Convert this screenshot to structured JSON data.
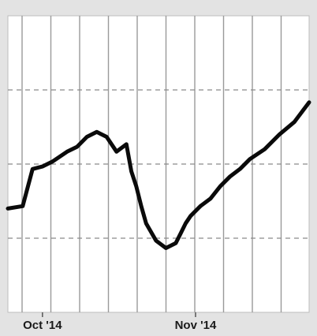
{
  "chart_data": {
    "type": "line",
    "title": "",
    "xlabel": "",
    "ylabel": "",
    "x_tick_labels": [
      "Oct '14",
      "Nov '14"
    ],
    "x_tick_dates": [
      "2014-10-01",
      "2014-11-01"
    ],
    "x_range": [
      "2014-09-24",
      "2014-11-24"
    ],
    "grid": "on",
    "legend": "none",
    "line_color": "#0a0a0a",
    "grid_color": "#8a8a8a",
    "background_color": "#ffffff",
    "series": [
      {
        "x": [
          "2014-09-24",
          "2014-09-27",
          "2014-09-29",
          "2014-10-01",
          "2014-10-03",
          "2014-10-06",
          "2014-10-08",
          "2014-10-10",
          "2014-10-12",
          "2014-10-14",
          "2014-10-16",
          "2014-10-18",
          "2014-10-19",
          "2014-10-20",
          "2014-10-21",
          "2014-10-22",
          "2014-10-24",
          "2014-10-26",
          "2014-10-28",
          "2014-10-29",
          "2014-10-30",
          "2014-10-31",
          "2014-11-02",
          "2014-11-04",
          "2014-11-06",
          "2014-11-08",
          "2014-11-10",
          "2014-11-12",
          "2014-11-15",
          "2014-11-18",
          "2014-11-21",
          "2014-11-24"
        ],
        "y": [
          0.6,
          0.65,
          1.4,
          1.45,
          1.55,
          1.75,
          1.85,
          2.05,
          2.15,
          2.05,
          1.75,
          1.9,
          1.35,
          1.05,
          0.65,
          0.3,
          -0.05,
          -0.2,
          -0.1,
          0.1,
          0.3,
          0.45,
          0.65,
          0.8,
          1.05,
          1.25,
          1.4,
          1.6,
          1.8,
          2.1,
          2.35,
          2.75
        ]
      }
    ]
  }
}
